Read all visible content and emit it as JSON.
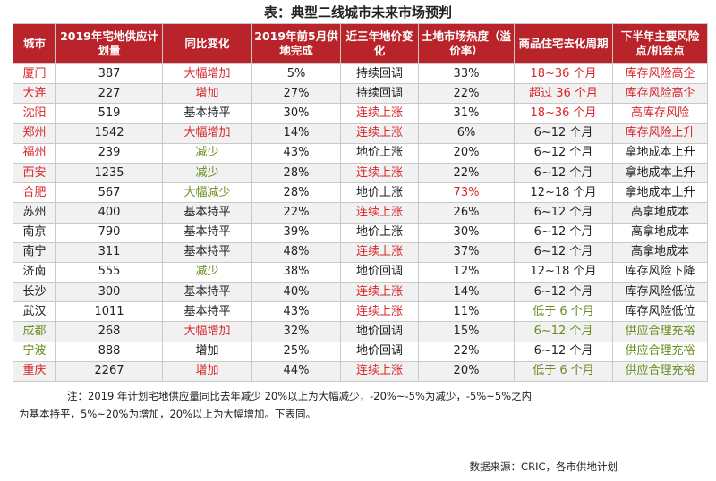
{
  "title": "表：典型二线城市未来市场预判",
  "headers": [
    "城市",
    "2019年宅地供应计划量",
    "同比变化",
    "2019年前5月供地完成",
    "近三年地价变化",
    "土地市场热度（溢价率）",
    "商品住宅去化周期",
    "下半年主要风险点/机会点"
  ],
  "rows": [
    {
      "city": "厦门",
      "supply": "387",
      "yoy": "大幅增加",
      "done": "5%",
      "price": "持续回调",
      "heat": "33%",
      "cycle": "18~36 个月",
      "risk": "库存风险高企"
    },
    {
      "city": "大连",
      "supply": "227",
      "yoy": "增加",
      "done": "27%",
      "price": "持续回调",
      "heat": "22%",
      "cycle": "超过 36 个月",
      "risk": "库存风险高企"
    },
    {
      "city": "沈阳",
      "supply": "519",
      "yoy": "基本持平",
      "done": "30%",
      "price": "连续上涨",
      "heat": "31%",
      "cycle": "18~36 个月",
      "risk": "高库存风险"
    },
    {
      "city": "郑州",
      "supply": "1542",
      "yoy": "大幅增加",
      "done": "14%",
      "price": "连续上涨",
      "heat": "6%",
      "cycle": "6~12 个月",
      "risk": "库存风险上升"
    },
    {
      "city": "福州",
      "supply": "239",
      "yoy": "减少",
      "done": "43%",
      "price": "地价上涨",
      "heat": "20%",
      "cycle": "6~12 个月",
      "risk": "拿地成本上升"
    },
    {
      "city": "西安",
      "supply": "1235",
      "yoy": "减少",
      "done": "28%",
      "price": "连续上涨",
      "heat": "22%",
      "cycle": "6~12 个月",
      "risk": "拿地成本上升"
    },
    {
      "city": "合肥",
      "supply": "567",
      "yoy": "大幅减少",
      "done": "28%",
      "price": "地价上涨",
      "heat": "73%",
      "cycle": "12~18 个月",
      "risk": "拿地成本上升"
    },
    {
      "city": "苏州",
      "supply": "400",
      "yoy": "基本持平",
      "done": "22%",
      "price": "连续上涨",
      "heat": "26%",
      "cycle": "6~12 个月",
      "risk": "高拿地成本"
    },
    {
      "city": "南京",
      "supply": "790",
      "yoy": "基本持平",
      "done": "39%",
      "price": "地价上涨",
      "heat": "30%",
      "cycle": "6~12 个月",
      "risk": "高拿地成本"
    },
    {
      "city": "南宁",
      "supply": "311",
      "yoy": "基本持平",
      "done": "48%",
      "price": "连续上涨",
      "heat": "37%",
      "cycle": "6~12 个月",
      "risk": "高拿地成本"
    },
    {
      "city": "济南",
      "supply": "555",
      "yoy": "减少",
      "done": "38%",
      "price": "地价回调",
      "heat": "12%",
      "cycle": "12~18 个月",
      "risk": "库存风险下降"
    },
    {
      "city": "长沙",
      "supply": "300",
      "yoy": "基本持平",
      "done": "40%",
      "price": "连续上涨",
      "heat": "14%",
      "cycle": "6~12 个月",
      "risk": "库存风险低位"
    },
    {
      "city": "武汉",
      "supply": "1011",
      "yoy": "基本持平",
      "done": "43%",
      "price": "连续上涨",
      "heat": "11%",
      "cycle": "低于 6 个月",
      "risk": "库存风险低位"
    },
    {
      "city": "成都",
      "supply": "268",
      "yoy": "大幅增加",
      "done": "32%",
      "price": "地价回调",
      "heat": "15%",
      "cycle": "6~12 个月",
      "risk": "供应合理充裕"
    },
    {
      "city": "宁波",
      "supply": "888",
      "yoy": "增加",
      "done": "25%",
      "price": "地价回调",
      "heat": "22%",
      "cycle": "6~12 个月",
      "risk": "供应合理充裕"
    },
    {
      "city": "重庆",
      "supply": "2267",
      "yoy": "增加",
      "done": "44%",
      "price": "连续上涨",
      "heat": "20%",
      "cycle": "低于 6 个月",
      "risk": "供应合理充裕"
    }
  ],
  "colors": {
    "header_bg": "#b8242a",
    "red": "#d8262b",
    "green": "#6a8e1e",
    "black": "#222222"
  },
  "cell_colors": [
    {
      "city": "red",
      "yoy": "red",
      "cycle": "red",
      "risk": "red"
    },
    {
      "city": "red",
      "yoy": "red",
      "cycle": "red",
      "risk": "red"
    },
    {
      "city": "red",
      "price": "red",
      "cycle": "red",
      "risk": "red"
    },
    {
      "city": "red",
      "yoy": "red",
      "price": "red",
      "risk": "red"
    },
    {
      "city": "red",
      "yoy": "green"
    },
    {
      "city": "red",
      "yoy": "green",
      "price": "red"
    },
    {
      "city": "red",
      "yoy": "green",
      "heat": "red"
    },
    {
      "price": "red"
    },
    {},
    {
      "price": "red"
    },
    {
      "yoy": "green"
    },
    {
      "price": "red"
    },
    {
      "price": "red",
      "cycle": "green"
    },
    {
      "city": "green",
      "yoy": "red",
      "cycle": "green",
      "risk": "green"
    },
    {
      "city": "green",
      "risk": "green"
    },
    {
      "city": "red",
      "yoy": "red",
      "price": "red",
      "cycle": "green",
      "risk": "green"
    }
  ],
  "notes": {
    "line1": "注：2019 年计划宅地供应量同比去年减少 20%以上为大幅减少，-20%~-5%为减少，-5%~5%之内",
    "line2": "为基本持平，5%~20%为增加，20%以上为大幅增加。下表同。"
  },
  "source": "数据来源：CRIC，各市供地计划"
}
